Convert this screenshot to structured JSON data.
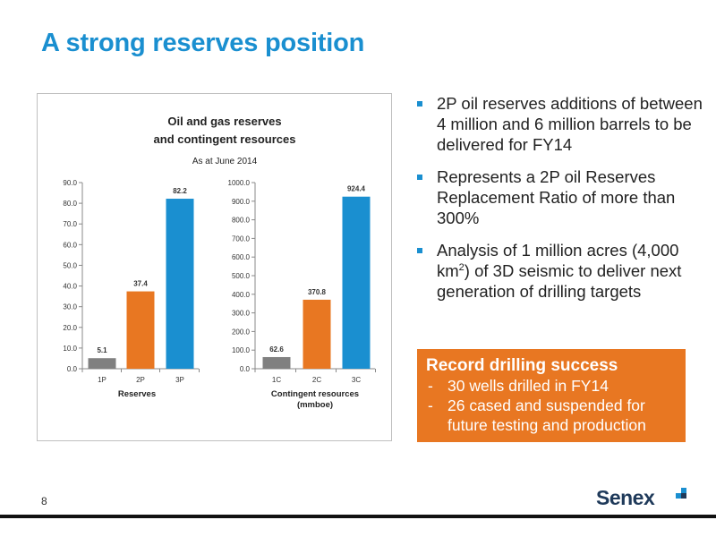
{
  "slide": {
    "title": "A strong reserves position",
    "page_number": "8",
    "logo_text": "Senex"
  },
  "bullets": [
    {
      "pre": "2P oil reserves additions of between 4 million and 6 million barrels to be delivered for FY14",
      "sup": "",
      "post": ""
    },
    {
      "pre": "Represents a 2P oil Reserves Replacement Ratio of more than 300%",
      "sup": "",
      "post": ""
    },
    {
      "pre": "Analysis of 1 million acres (4,000 km",
      "sup": "2",
      "post": ") of 3D seismic to deliver next generation of drilling targets"
    }
  ],
  "drilling": {
    "heading": "Record drilling success",
    "items": [
      "30 wells drilled in FY14",
      "26 cased and suspended for future testing and production"
    ]
  },
  "colors": {
    "title": "#1a8fd0",
    "grey_bar": "#808080",
    "orange_bar": "#e87722",
    "blue_bar": "#1a8fd0",
    "orange_box": "#e87722"
  },
  "chart_data": [
    {
      "type": "bar",
      "title": "Oil and gas reserves",
      "title_line2": "and contingent resources",
      "subtitle": "As at June 2014",
      "xlabel": "Reserves",
      "xlabel_line2": "",
      "categories": [
        "1P",
        "2P",
        "3P"
      ],
      "values": [
        5.1,
        37.4,
        82.2
      ],
      "labels": [
        "5.1",
        "37.4",
        "82.2"
      ],
      "ylim": [
        0,
        90
      ],
      "yticks": [
        "0.0",
        "10.0",
        "20.0",
        "30.0",
        "40.0",
        "50.0",
        "60.0",
        "70.0",
        "80.0",
        "90.0"
      ],
      "grid": false
    },
    {
      "type": "bar",
      "xlabel": "Contingent resources",
      "xlabel_line2": "(mmboe)",
      "categories": [
        "1C",
        "2C",
        "3C"
      ],
      "values": [
        62.6,
        370.8,
        924.4
      ],
      "labels": [
        "62.6",
        "370.8",
        "924.4"
      ],
      "ylim": [
        0,
        1000
      ],
      "yticks": [
        "0.0",
        "100.0",
        "200.0",
        "300.0",
        "400.0",
        "500.0",
        "600.0",
        "700.0",
        "800.0",
        "900.0",
        "1000.0"
      ],
      "grid": false
    }
  ]
}
